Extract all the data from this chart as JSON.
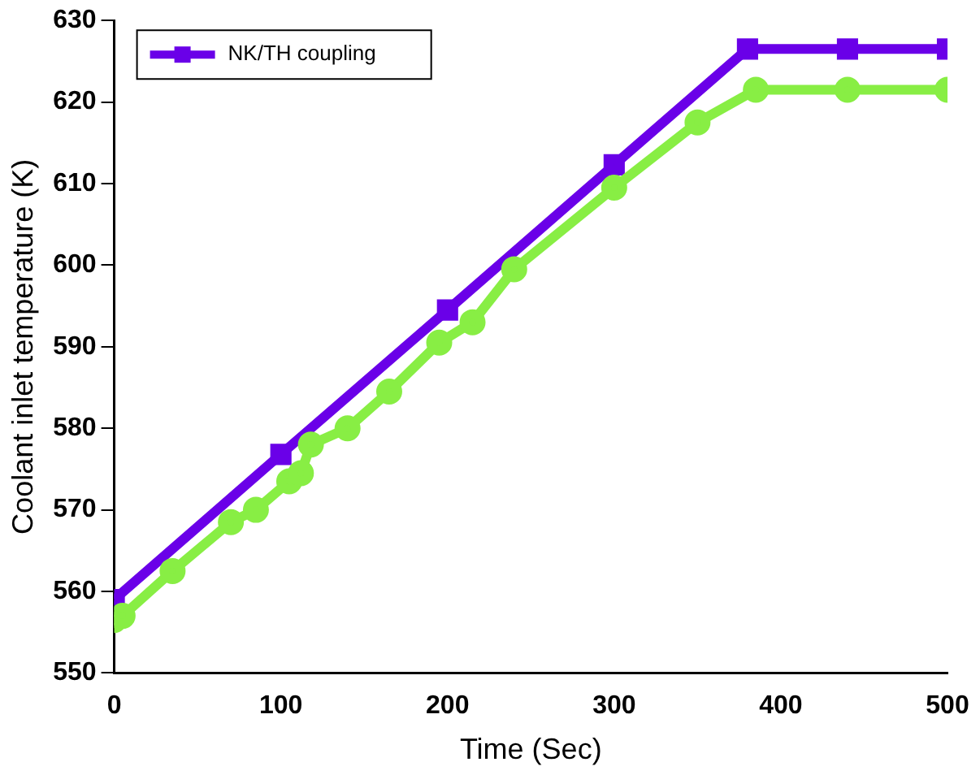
{
  "chart_data": {
    "type": "line",
    "xlabel": "Time (Sec)",
    "ylabel": "Coolant inlet temperature (K)",
    "xlim": [
      0,
      500
    ],
    "xticks": [
      0,
      100,
      200,
      300,
      400,
      500
    ],
    "ylim": [
      550,
      630
    ],
    "yticks": [
      550,
      560,
      570,
      580,
      590,
      600,
      610,
      620,
      630
    ],
    "grid": false,
    "legend": "top left",
    "line_style": "solid",
    "series": [
      {
        "name": "NK/TH coupling",
        "color": "#6a00e8",
        "marker": "square",
        "x": [
          0,
          100,
          200,
          300,
          380,
          440,
          500
        ],
        "values": [
          559,
          576.8,
          594.5,
          612.3,
          626.5,
          626.5,
          626.5
        ]
      },
      {
        "color": "#88ee44",
        "marker": "circle",
        "x": [
          0,
          5,
          35,
          70,
          85,
          105,
          112,
          118,
          140,
          165,
          195,
          215,
          240,
          300,
          350,
          385,
          440,
          500
        ],
        "values": [
          556.5,
          557,
          562.5,
          568.5,
          570,
          573.5,
          574.5,
          578,
          580,
          584.5,
          590.5,
          593,
          599.5,
          609.5,
          617.5,
          621.5,
          621.5,
          621.5
        ]
      }
    ]
  }
}
